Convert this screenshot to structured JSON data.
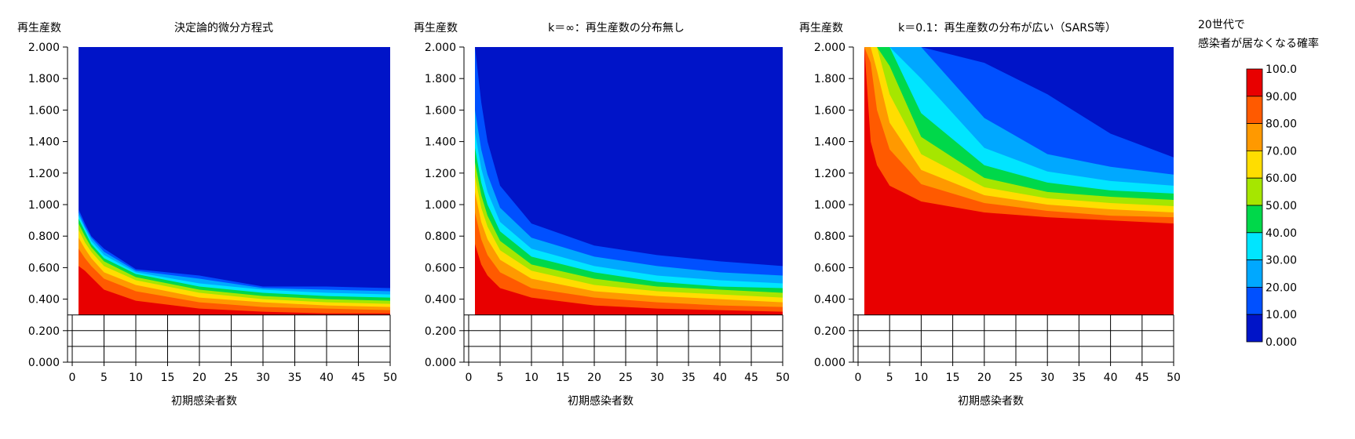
{
  "chart_data": [
    {
      "type": "heatmap",
      "title": "決定論的微分方程式",
      "ylabel": "再生産数",
      "xlabel": "初期感染者数",
      "xlim": [
        0,
        50
      ],
      "ylim": [
        0,
        2.0
      ],
      "data_ylim": [
        0.3,
        2.0
      ],
      "x_ticks": [
        "0",
        "5",
        "10",
        "15",
        "20",
        "25",
        "30",
        "35",
        "40",
        "45",
        "50"
      ],
      "y_ticks": [
        "0.000",
        "0.200",
        "0.400",
        "0.600",
        "0.800",
        "1.000",
        "1.200",
        "1.400",
        "1.600",
        "1.800",
        "2.000"
      ],
      "contour_x": [
        1,
        2,
        3,
        5,
        10,
        20,
        30,
        40,
        50
      ],
      "contours": [
        {
          "level": 90,
          "y": [
            0.61,
            0.58,
            0.54,
            0.46,
            0.39,
            0.34,
            0.32,
            0.31,
            0.31
          ]
        },
        {
          "level": 80,
          "y": [
            0.72,
            0.66,
            0.61,
            0.53,
            0.45,
            0.38,
            0.35,
            0.34,
            0.33
          ]
        },
        {
          "level": 70,
          "y": [
            0.79,
            0.72,
            0.66,
            0.57,
            0.49,
            0.41,
            0.38,
            0.36,
            0.35
          ]
        },
        {
          "level": 60,
          "y": [
            0.84,
            0.76,
            0.7,
            0.61,
            0.52,
            0.44,
            0.4,
            0.38,
            0.37
          ]
        },
        {
          "level": 50,
          "y": [
            0.88,
            0.8,
            0.73,
            0.64,
            0.54,
            0.46,
            0.42,
            0.4,
            0.39
          ]
        },
        {
          "level": 40,
          "y": [
            0.91,
            0.83,
            0.75,
            0.66,
            0.56,
            0.48,
            0.44,
            0.42,
            0.41
          ]
        },
        {
          "level": 30,
          "y": [
            0.93,
            0.85,
            0.77,
            0.68,
            0.57,
            0.5,
            0.46,
            0.44,
            0.43
          ]
        },
        {
          "level": 20,
          "y": [
            0.95,
            0.86,
            0.79,
            0.7,
            0.58,
            0.53,
            0.47,
            0.46,
            0.45
          ]
        },
        {
          "level": 10,
          "y": [
            0.97,
            0.88,
            0.8,
            0.72,
            0.59,
            0.55,
            0.48,
            0.48,
            0.47
          ]
        }
      ]
    },
    {
      "type": "heatmap",
      "title": "k＝∞：再生産数の分布無し",
      "ylabel": "再生産数",
      "xlabel": "初期感染者数",
      "xlim": [
        0,
        50
      ],
      "ylim": [
        0,
        2.0
      ],
      "data_ylim": [
        0.3,
        2.0
      ],
      "x_ticks": [
        "0",
        "5",
        "10",
        "15",
        "20",
        "25",
        "30",
        "35",
        "40",
        "45",
        "50"
      ],
      "y_ticks": [
        "0.000",
        "0.200",
        "0.400",
        "0.600",
        "0.800",
        "1.000",
        "1.200",
        "1.400",
        "1.600",
        "1.800",
        "2.000"
      ],
      "contour_x": [
        1,
        2,
        3,
        5,
        10,
        20,
        30,
        40,
        50
      ],
      "contours": [
        {
          "level": 90,
          "y": [
            0.75,
            0.62,
            0.55,
            0.47,
            0.41,
            0.36,
            0.34,
            0.33,
            0.32
          ]
        },
        {
          "level": 80,
          "y": [
            0.95,
            0.78,
            0.68,
            0.57,
            0.47,
            0.41,
            0.38,
            0.36,
            0.35
          ]
        },
        {
          "level": 70,
          "y": [
            1.08,
            0.89,
            0.78,
            0.65,
            0.53,
            0.45,
            0.42,
            0.4,
            0.38
          ]
        },
        {
          "level": 60,
          "y": [
            1.18,
            0.98,
            0.86,
            0.71,
            0.58,
            0.49,
            0.45,
            0.43,
            0.41
          ]
        },
        {
          "level": 50,
          "y": [
            1.27,
            1.06,
            0.93,
            0.77,
            0.62,
            0.53,
            0.48,
            0.46,
            0.44
          ]
        },
        {
          "level": 40,
          "y": [
            1.36,
            1.14,
            1.0,
            0.83,
            0.67,
            0.57,
            0.51,
            0.48,
            0.47
          ]
        },
        {
          "level": 30,
          "y": [
            1.46,
            1.23,
            1.08,
            0.89,
            0.72,
            0.61,
            0.55,
            0.52,
            0.5
          ]
        },
        {
          "level": 20,
          "y": [
            1.6,
            1.35,
            1.19,
            0.98,
            0.79,
            0.67,
            0.61,
            0.57,
            0.55
          ]
        },
        {
          "level": 10,
          "y": [
            2.0,
            1.65,
            1.4,
            1.12,
            0.88,
            0.74,
            0.68,
            0.64,
            0.61
          ]
        }
      ]
    },
    {
      "type": "heatmap",
      "title": "k＝0.1：再生産数の分布が広い（SARS等）",
      "ylabel": "再生産数",
      "xlabel": "初期感染者数",
      "xlim": [
        0,
        50
      ],
      "ylim": [
        0,
        2.0
      ],
      "data_ylim": [
        0.3,
        2.0
      ],
      "x_ticks": [
        "0",
        "5",
        "10",
        "15",
        "20",
        "25",
        "30",
        "35",
        "40",
        "45",
        "50"
      ],
      "y_ticks": [
        "0.000",
        "0.200",
        "0.400",
        "0.600",
        "0.800",
        "1.000",
        "1.200",
        "1.400",
        "1.600",
        "1.800",
        "2.000"
      ],
      "contour_x": [
        1,
        2,
        3,
        5,
        10,
        20,
        30,
        40,
        50
      ],
      "contours": [
        {
          "level": 90,
          "y": [
            2.0,
            1.4,
            1.25,
            1.12,
            1.02,
            0.95,
            0.92,
            0.9,
            0.88
          ]
        },
        {
          "level": 80,
          "y": [
            2.0,
            1.9,
            1.6,
            1.35,
            1.13,
            1.01,
            0.96,
            0.93,
            0.92
          ]
        },
        {
          "level": 70,
          "y": [
            2.0,
            2.0,
            1.85,
            1.52,
            1.22,
            1.06,
            1.0,
            0.97,
            0.95
          ]
        },
        {
          "level": 60,
          "y": [
            2.0,
            2.0,
            2.0,
            1.7,
            1.32,
            1.11,
            1.04,
            1.01,
            0.99
          ]
        },
        {
          "level": 50,
          "y": [
            2.0,
            2.0,
            2.0,
            1.88,
            1.43,
            1.17,
            1.08,
            1.05,
            1.03
          ]
        },
        {
          "level": 40,
          "y": [
            2.0,
            2.0,
            2.0,
            2.0,
            1.58,
            1.25,
            1.14,
            1.09,
            1.07
          ]
        },
        {
          "level": 30,
          "y": [
            2.0,
            2.0,
            2.0,
            2.0,
            1.8,
            1.36,
            1.21,
            1.15,
            1.12
          ]
        },
        {
          "level": 20,
          "y": [
            2.0,
            2.0,
            2.0,
            2.0,
            2.0,
            1.55,
            1.32,
            1.24,
            1.19
          ]
        },
        {
          "level": 10,
          "y": [
            2.0,
            2.0,
            2.0,
            2.0,
            2.0,
            1.9,
            1.7,
            1.45,
            1.3
          ]
        }
      ]
    }
  ],
  "colorbar": {
    "title_line1": "20世代で",
    "title_line2": "感染者が居なくなる確率",
    "labels": [
      "100.0",
      "90.00",
      "80.00",
      "70.00",
      "60.00",
      "50.00",
      "40.00",
      "30.00",
      "20.00",
      "10.00",
      "0.000"
    ],
    "colors_top_to_bottom": [
      "#e80000",
      "#ff5a00",
      "#ff9900",
      "#ffdd00",
      "#a6e600",
      "#00d84a",
      "#00e5ff",
      "#00a8ff",
      "#0050ff",
      "#0014c8"
    ]
  },
  "colors": {
    "band_90_100": "#e80000",
    "band_80_90": "#ff5a00",
    "band_70_80": "#ff9900",
    "band_60_70": "#ffdd00",
    "band_50_60": "#a6e600",
    "band_40_50": "#00d84a",
    "band_30_40": "#00e5ff",
    "band_20_30": "#00a8ff",
    "band_10_20": "#0050ff",
    "band_0_10": "#0014c8"
  }
}
